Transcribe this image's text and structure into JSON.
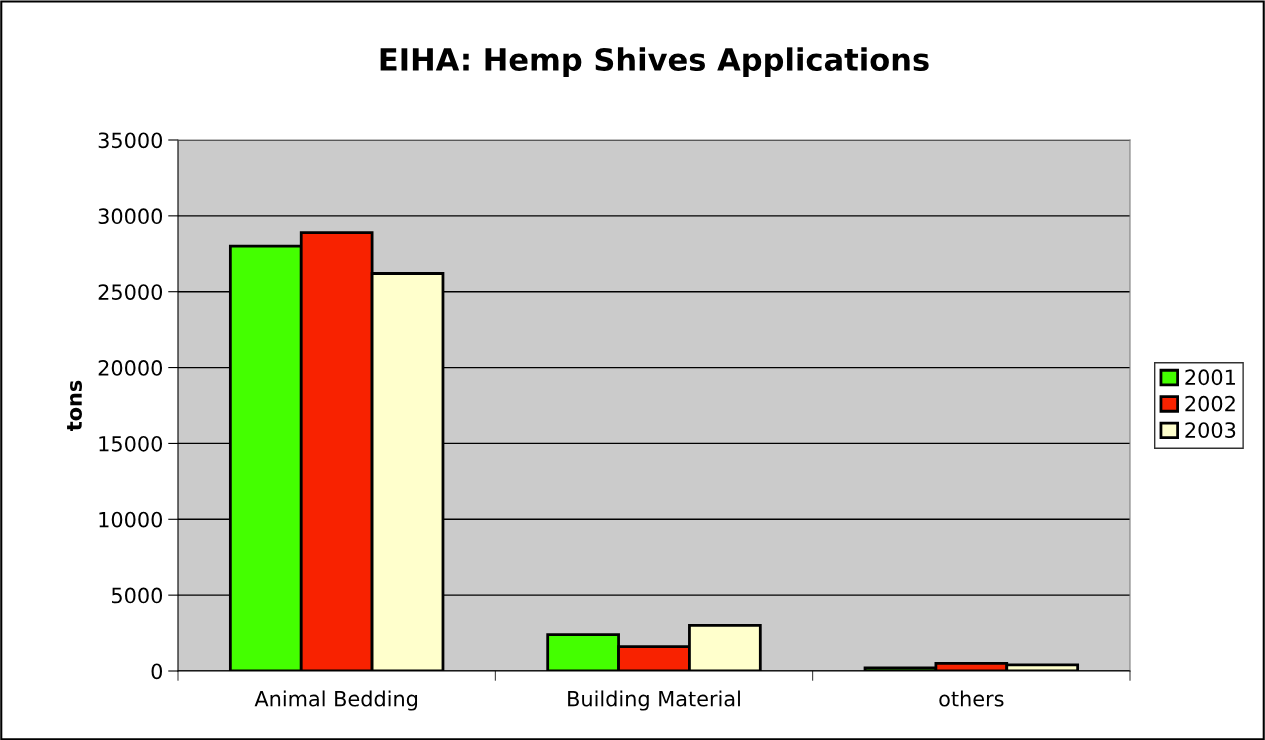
{
  "chart_data": {
    "type": "bar",
    "title": "EIHA: Hemp Shives Applications",
    "ylabel": "tons",
    "categories": [
      "Animal Bedding",
      "Building Material",
      "others"
    ],
    "series": [
      {
        "name": "2001",
        "color": "#44ff00",
        "values": [
          28000,
          2400,
          200
        ]
      },
      {
        "name": "2002",
        "color": "#f82200",
        "values": [
          28900,
          1600,
          500
        ]
      },
      {
        "name": "2003",
        "color": "#ffffcc",
        "values": [
          26200,
          3000,
          400
        ]
      }
    ],
    "ylim": [
      0,
      35000
    ],
    "yticks": [
      0,
      5000,
      10000,
      15000,
      20000,
      25000,
      30000,
      35000
    ],
    "grid": "y",
    "legend": "right"
  }
}
